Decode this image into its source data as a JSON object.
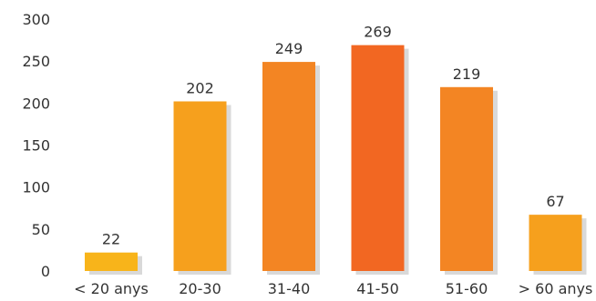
{
  "chart_data": {
    "type": "bar",
    "categories": [
      "< 20 anys",
      "20-30",
      "31-40",
      "41-50",
      "51-60",
      "> 60 anys"
    ],
    "values": [
      22,
      202,
      249,
      269,
      219,
      67
    ],
    "title": "",
    "xlabel": "",
    "ylabel": "",
    "ylim": [
      0,
      300
    ],
    "yticks": [
      0,
      50,
      100,
      150,
      200,
      250,
      300
    ],
    "grid": false,
    "legend": "none",
    "bar_colors": [
      "#f8b41a",
      "#f6a01d",
      "#f38523",
      "#f26722",
      "#f38523",
      "#f6a01d"
    ],
    "shadow_color": "#d9d9d9"
  }
}
